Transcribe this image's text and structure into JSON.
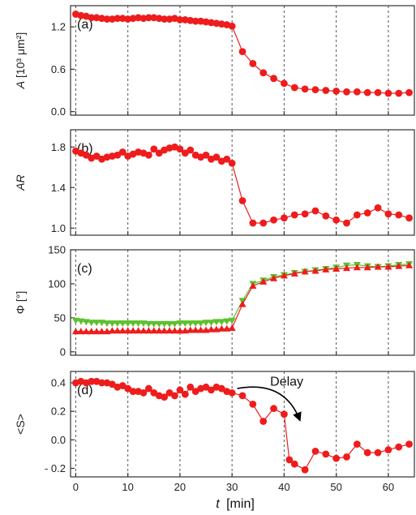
{
  "chart_data": {
    "type": "line",
    "xlabel_italic": "t",
    "xlabel_unit": "[min]",
    "xlim": [
      -1,
      65
    ],
    "xticks": [
      0,
      10,
      20,
      30,
      40,
      50,
      60
    ],
    "vlines": [
      0,
      10,
      20,
      30,
      40,
      50,
      60
    ],
    "colors": {
      "red": "#ee1c1c",
      "green": "#5cc02c",
      "frame": "#333333",
      "grid": "#555555"
    },
    "panels": [
      {
        "label": "(a)",
        "ylabel_italic": "A",
        "ylabel_rest": " [10³ μm²]",
        "ylim": [
          -0.05,
          1.5
        ],
        "yticks": [
          0.0,
          0.6,
          1.2
        ],
        "ytick_labels": [
          "0.0",
          "0.6",
          "1.2"
        ],
        "series": [
          {
            "color": "red",
            "marker": "circle",
            "x": [
              0,
              1,
              2,
              3,
              4,
              5,
              6,
              7,
              8,
              9,
              10,
              11,
              12,
              13,
              14,
              15,
              16,
              17,
              18,
              19,
              20,
              21,
              22,
              23,
              24,
              25,
              26,
              27,
              28,
              29,
              30,
              32,
              34,
              36,
              38,
              40,
              42,
              44,
              46,
              48,
              50,
              52,
              54,
              56,
              58,
              60,
              62,
              64
            ],
            "y": [
              1.38,
              1.36,
              1.35,
              1.33,
              1.33,
              1.32,
              1.31,
              1.31,
              1.32,
              1.32,
              1.31,
              1.32,
              1.33,
              1.32,
              1.33,
              1.33,
              1.32,
              1.31,
              1.31,
              1.32,
              1.3,
              1.3,
              1.29,
              1.28,
              1.28,
              1.27,
              1.26,
              1.25,
              1.24,
              1.23,
              1.21,
              0.85,
              0.68,
              0.55,
              0.47,
              0.4,
              0.34,
              0.32,
              0.31,
              0.3,
              0.29,
              0.28,
              0.28,
              0.27,
              0.27,
              0.26,
              0.26,
              0.27
            ]
          }
        ]
      },
      {
        "label": "(b)",
        "ylabel_italic": "AR",
        "ylabel_rest": "",
        "ylim": [
          0.93,
          1.97
        ],
        "yticks": [
          1.0,
          1.4,
          1.8
        ],
        "ytick_labels": [
          "1.0",
          "1.4",
          "1.8"
        ],
        "series": [
          {
            "color": "red",
            "marker": "circle",
            "x": [
              0,
              1,
              2,
              3,
              4,
              5,
              6,
              7,
              8,
              9,
              10,
              11,
              12,
              13,
              14,
              15,
              16,
              17,
              18,
              19,
              20,
              21,
              22,
              23,
              24,
              25,
              26,
              27,
              28,
              29,
              30,
              32,
              34,
              36,
              38,
              40,
              42,
              44,
              46,
              48,
              50,
              52,
              54,
              56,
              58,
              60,
              62,
              64
            ],
            "y": [
              1.76,
              1.74,
              1.72,
              1.69,
              1.71,
              1.68,
              1.7,
              1.71,
              1.72,
              1.75,
              1.71,
              1.73,
              1.75,
              1.74,
              1.72,
              1.78,
              1.74,
              1.77,
              1.79,
              1.8,
              1.78,
              1.74,
              1.77,
              1.72,
              1.7,
              1.72,
              1.68,
              1.7,
              1.66,
              1.68,
              1.64,
              1.27,
              1.05,
              1.05,
              1.08,
              1.1,
              1.13,
              1.14,
              1.17,
              1.12,
              1.08,
              1.05,
              1.13,
              1.15,
              1.2,
              1.14,
              1.13,
              1.1
            ]
          }
        ]
      },
      {
        "label": "(c)",
        "ylabel_italic": "",
        "ylabel_rest": "Φ [°]",
        "ylim": [
          -5,
          150
        ],
        "yticks": [
          0,
          50,
          100,
          150
        ],
        "ytick_labels": [
          "0",
          "50",
          "100",
          "150"
        ],
        "series": [
          {
            "color": "green",
            "marker": "triangle-down",
            "x": [
              0,
              1,
              2,
              3,
              4,
              5,
              6,
              7,
              8,
              9,
              10,
              11,
              12,
              13,
              14,
              15,
              16,
              17,
              18,
              19,
              20,
              21,
              22,
              23,
              24,
              25,
              26,
              27,
              28,
              29,
              30,
              32,
              34,
              36,
              38,
              40,
              42,
              44,
              46,
              48,
              50,
              52,
              54,
              56,
              58,
              60,
              62,
              64
            ],
            "y": [
              46,
              45,
              44,
              43,
              43,
              43,
              42,
              42,
              42,
              42,
              42,
              42,
              42,
              42,
              41,
              41,
              41,
              41,
              41,
              41,
              42,
              42,
              42,
              42,
              42,
              43,
              43,
              44,
              44,
              45,
              46,
              75,
              100,
              105,
              110,
              113,
              116,
              118,
              120,
              122,
              124,
              127,
              128,
              126,
              125,
              126,
              128,
              129
            ]
          },
          {
            "color": "red",
            "marker": "triangle-up",
            "x": [
              0,
              1,
              2,
              3,
              4,
              5,
              6,
              7,
              8,
              9,
              10,
              11,
              12,
              13,
              14,
              15,
              16,
              17,
              18,
              19,
              20,
              21,
              22,
              23,
              24,
              25,
              26,
              27,
              28,
              29,
              30,
              32,
              34,
              36,
              38,
              40,
              42,
              44,
              46,
              48,
              50,
              52,
              54,
              56,
              58,
              60,
              62,
              64
            ],
            "y": [
              30,
              30,
              30,
              30,
              30,
              30,
              30,
              31,
              31,
              31,
              31,
              31,
              31,
              31,
              31,
              31,
              31,
              31,
              31,
              31,
              31,
              31,
              32,
              32,
              32,
              32,
              33,
              33,
              34,
              34,
              35,
              70,
              97,
              103,
              108,
              112,
              115,
              118,
              119,
              121,
              122,
              123,
              124,
              124,
              125,
              125,
              126,
              127
            ]
          }
        ]
      },
      {
        "label": "(d)",
        "ylabel_italic": "",
        "ylabel_rest": "<S>",
        "ylim": [
          -0.26,
          0.48
        ],
        "yticks": [
          -0.2,
          0.0,
          0.2,
          0.4
        ],
        "ytick_labels": [
          "- 0.2",
          "0.0",
          "0.2",
          "0.4"
        ],
        "annotation": {
          "text": "Delay",
          "x": 40.5,
          "y": 0.38
        },
        "series": [
          {
            "color": "red",
            "marker": "circle",
            "x": [
              0,
              1,
              2,
              3,
              4,
              5,
              6,
              7,
              8,
              9,
              10,
              11,
              12,
              13,
              14,
              15,
              16,
              17,
              18,
              19,
              20,
              21,
              22,
              23,
              24,
              25,
              26,
              27,
              28,
              29,
              30,
              32,
              34,
              36,
              38,
              40,
              41,
              42,
              44,
              46,
              48,
              50,
              52,
              54,
              56,
              58,
              60,
              62,
              64
            ],
            "y": [
              0.4,
              0.41,
              0.4,
              0.41,
              0.41,
              0.4,
              0.4,
              0.39,
              0.37,
              0.38,
              0.36,
              0.34,
              0.34,
              0.33,
              0.36,
              0.33,
              0.31,
              0.3,
              0.33,
              0.31,
              0.35,
              0.32,
              0.37,
              0.34,
              0.36,
              0.37,
              0.35,
              0.37,
              0.36,
              0.34,
              0.33,
              0.31,
              0.25,
              0.13,
              0.22,
              0.18,
              -0.14,
              -0.17,
              -0.21,
              -0.08,
              -0.1,
              -0.13,
              -0.12,
              -0.03,
              -0.09,
              -0.09,
              -0.07,
              -0.05,
              -0.03
            ]
          }
        ]
      }
    ]
  }
}
